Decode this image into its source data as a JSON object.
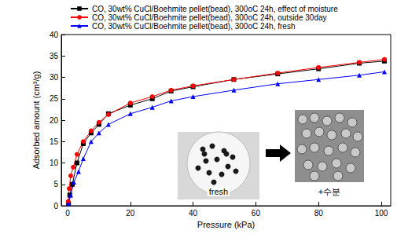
{
  "chart_data": {
    "type": "line",
    "x_label": "Pressure (kPa)",
    "y_label": "Adsorbed amount (cm³/g)",
    "xlim": [
      -2,
      103
    ],
    "xticks": [
      0,
      20,
      40,
      60,
      80,
      100
    ],
    "ylim": [
      0,
      40
    ],
    "yticks": [
      0,
      5,
      10,
      15,
      20,
      25,
      30,
      35,
      40
    ],
    "grid": false,
    "legend": "upper left",
    "series": [
      {
        "name": "CO, 30wt% CuCl/Boehmite pellet(bead), 300oC 24h, effect of moisture",
        "color": "#000000",
        "marker": "square",
        "x": [
          0.3,
          0.7,
          1.5,
          3,
          5,
          7.5,
          10,
          13,
          20,
          27,
          33,
          40,
          53,
          67,
          80,
          93,
          101
        ],
        "values": [
          0.5,
          2.5,
          5,
          10,
          14.5,
          17,
          19,
          21.5,
          23.5,
          25,
          26.8,
          27.8,
          29.5,
          30.8,
          32,
          33.3,
          33.8
        ]
      },
      {
        "name": "CO, 30wt% CuCl/Boehmite pellet(bead), 300oC 24h, outside 30day",
        "color": "#ff0000",
        "marker": "circle",
        "x": [
          0.2,
          0.5,
          1,
          1.8,
          3,
          5,
          7.5,
          10,
          13,
          20,
          27,
          33,
          40,
          53,
          67,
          80,
          93,
          101
        ],
        "values": [
          1,
          4,
          7,
          9,
          12,
          15,
          17.5,
          19.5,
          21.3,
          24,
          25.5,
          27,
          28,
          29.5,
          31,
          32.3,
          33.5,
          34.2
        ]
      },
      {
        "name": "CO, 30wt% CuCl/Boehmite pellet(bead), 300oC 24h, fresh",
        "color": "#0000ff",
        "marker": "triangle",
        "x": [
          0.3,
          1,
          2,
          3.5,
          5,
          7.5,
          10,
          13,
          20,
          27,
          33,
          40,
          53,
          67,
          80,
          93,
          101
        ],
        "values": [
          0.5,
          2.5,
          5.5,
          8,
          11,
          15,
          17,
          19,
          21.5,
          23,
          24.5,
          25.5,
          27,
          28.5,
          29.5,
          30.5,
          31.3
        ]
      }
    ],
    "annotations": [
      {
        "text": "fresh"
      },
      {
        "text": "+수분"
      }
    ]
  }
}
